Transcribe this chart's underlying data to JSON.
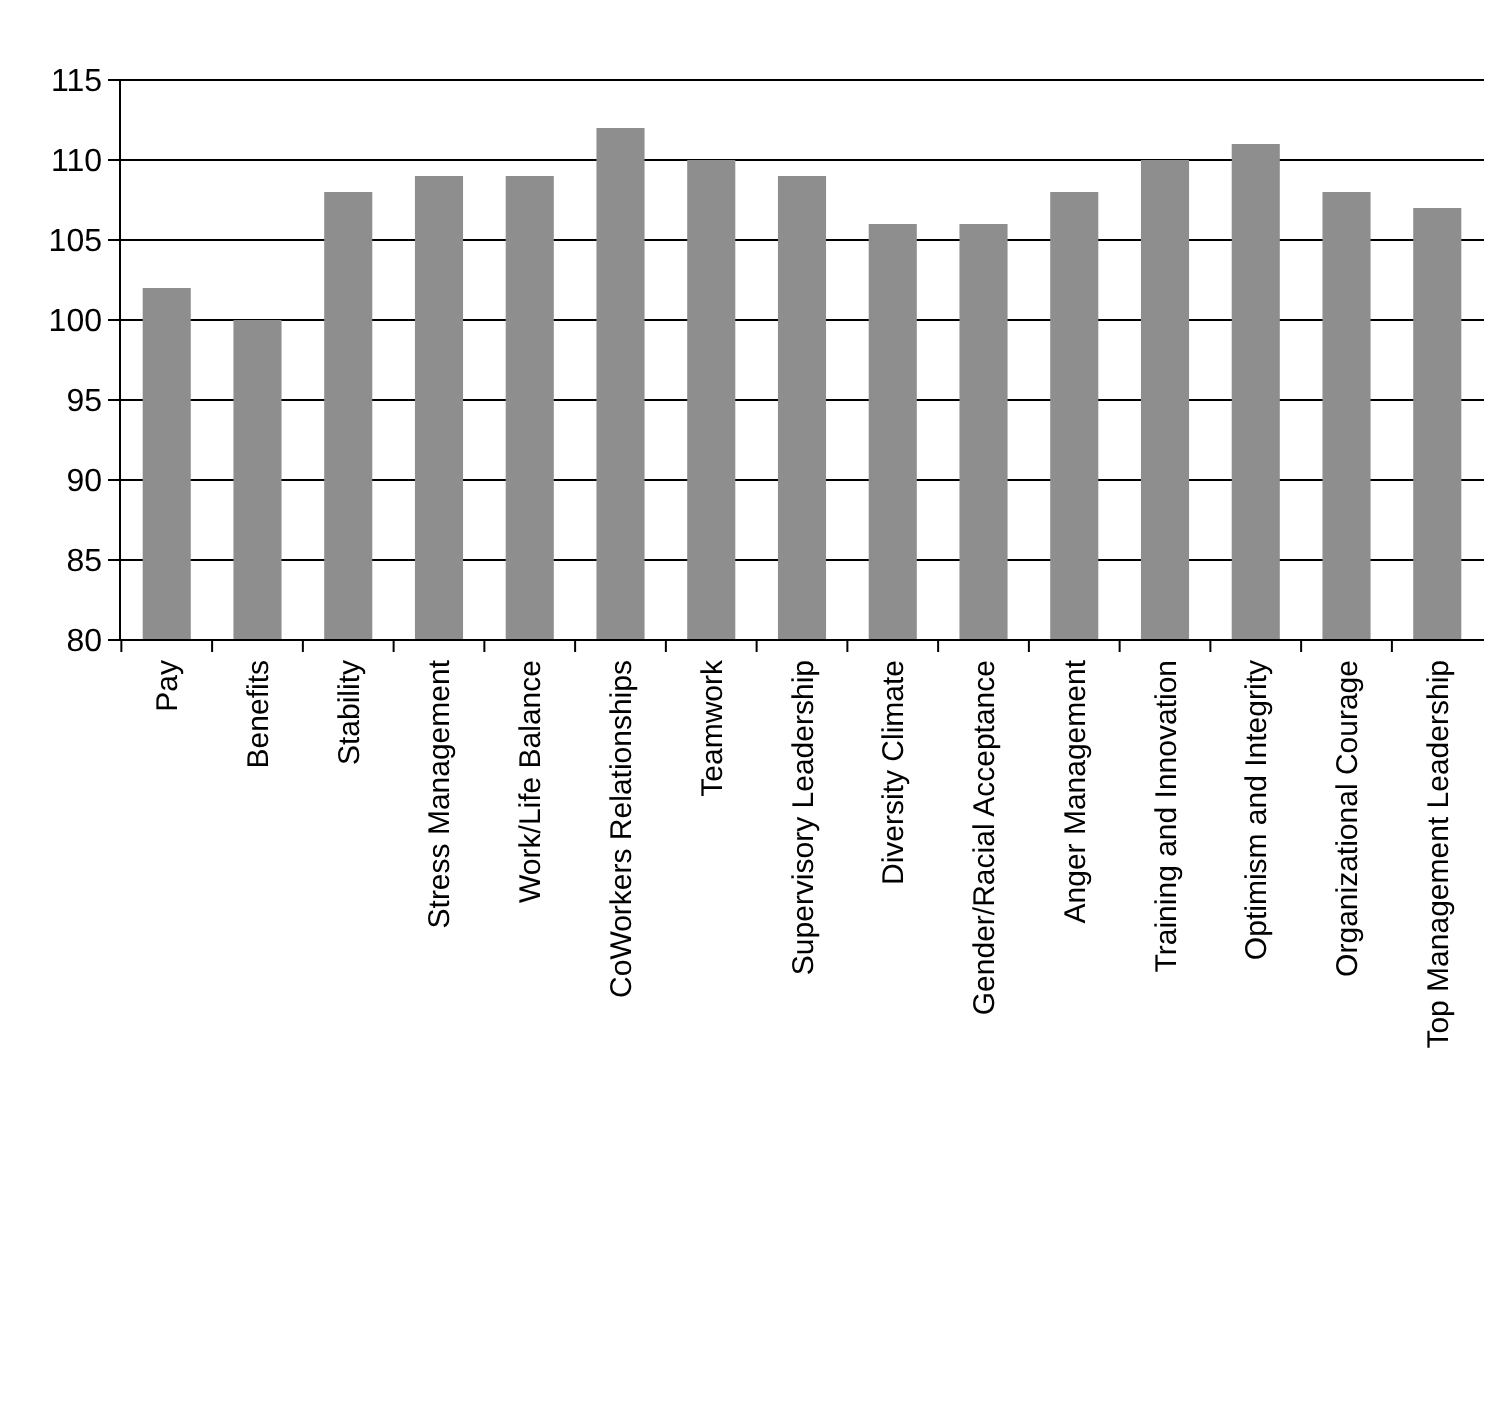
{
  "chart_data": {
    "type": "bar",
    "categories": [
      "Pay",
      "Benefits",
      "Stability",
      "Stress Management",
      "Work/Life Balance",
      "CoWorkers Relationships",
      "Teamwork",
      "Supervisory Leadership",
      "Diversity Climate",
      "Gender/Racial Acceptance",
      "Anger Management",
      "Training and Innovation",
      "Optimism and Integrity",
      "Organizational Courage",
      "Top Management Leadership"
    ],
    "values": [
      102,
      100,
      108,
      109,
      109,
      112,
      110,
      109,
      106,
      106,
      108,
      110,
      111,
      108,
      107
    ],
    "color": "#8e8e8e",
    "ylim": [
      80,
      115
    ],
    "yticks": [
      80,
      85,
      90,
      95,
      100,
      105,
      110,
      115
    ],
    "grid": "y"
  }
}
